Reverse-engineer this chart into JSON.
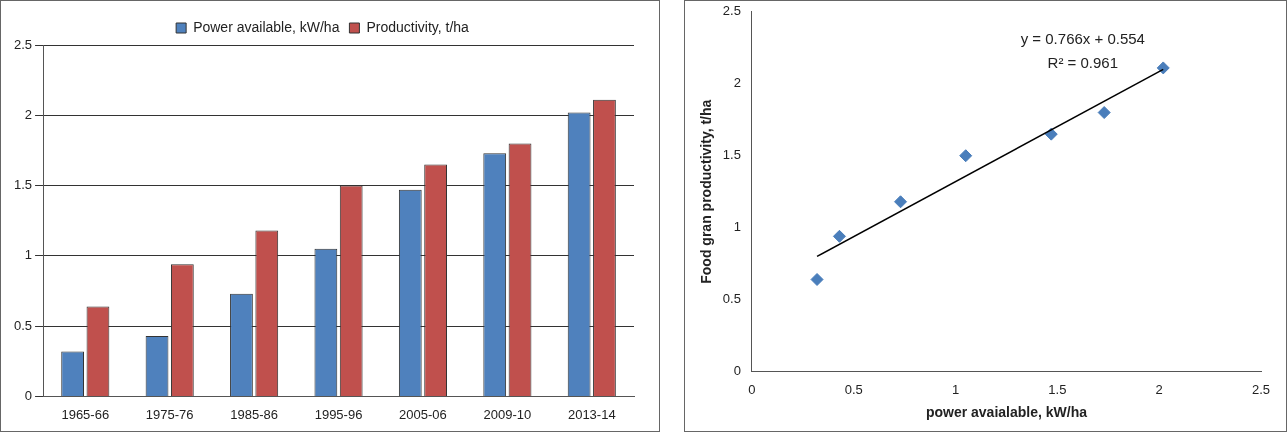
{
  "chart_data": [
    {
      "type": "bar",
      "categories": [
        "1965-66",
        "1975-76",
        "1985-86",
        "1995-96",
        "2005-06",
        "2009-10",
        "2013-14"
      ],
      "series": [
        {
          "name": "Power available, kW/ha",
          "color": "#4f81bd",
          "values": [
            0.32,
            0.43,
            0.73,
            1.05,
            1.47,
            1.73,
            2.02
          ]
        },
        {
          "name": "Productivity, t/ha",
          "color": "#c0504d",
          "values": [
            0.64,
            0.94,
            1.18,
            1.5,
            1.65,
            1.8,
            2.11
          ]
        }
      ],
      "ylim": [
        0,
        2.5
      ],
      "yticks": [
        0,
        0.5,
        1,
        1.5,
        2,
        2.5
      ],
      "grid": "y",
      "legend": "top"
    },
    {
      "type": "scatter",
      "xlabel": "power avaialable, kW/ha",
      "ylabel": "Food gran productivity, t/ha",
      "series": [
        {
          "type": "scatter",
          "marker": "diamond",
          "color": "#4a7ebb",
          "x": [
            0.32,
            0.43,
            0.73,
            1.05,
            1.47,
            1.73,
            2.02
          ],
          "values": [
            0.64,
            0.94,
            1.18,
            1.5,
            1.65,
            1.8,
            2.11
          ]
        },
        {
          "type": "line",
          "marker": "none",
          "color": "#000000",
          "x": [
            0.32,
            2.02
          ],
          "values": [
            0.8,
            2.1
          ]
        }
      ],
      "xlim": [
        0,
        2.5
      ],
      "xticks": [
        0,
        0.5,
        1,
        1.5,
        2,
        2.5
      ],
      "ylim": [
        0,
        2.5
      ],
      "yticks": [
        0,
        0.5,
        1,
        1.5,
        2,
        2.5
      ],
      "grid": false,
      "legend": false,
      "annotations": [
        "y = 0.766x + 0.554",
        "R² = 0.961"
      ]
    }
  ]
}
